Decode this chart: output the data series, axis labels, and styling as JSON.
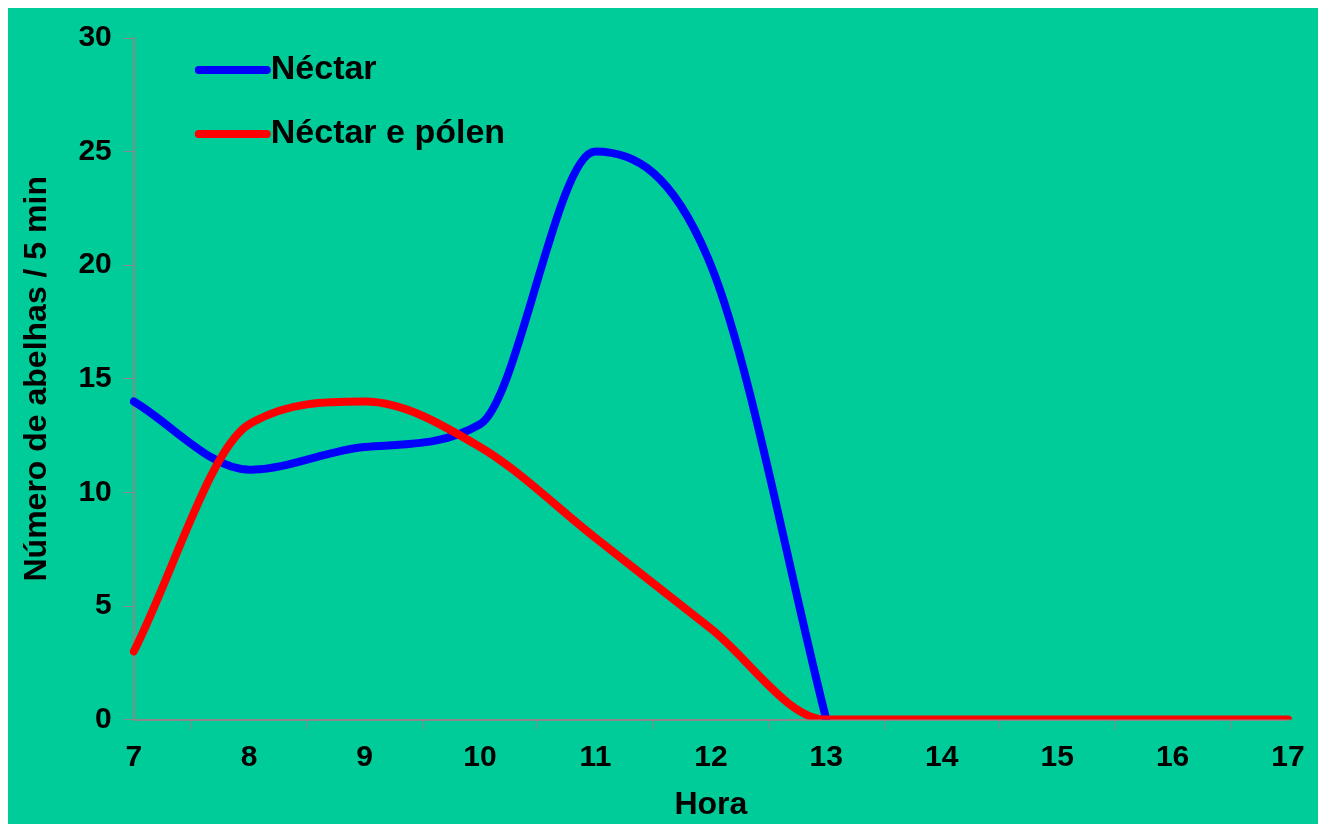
{
  "chart_data": {
    "type": "line",
    "xlabel": "Hora",
    "ylabel": "Número de abelhas / 5 min",
    "categories": [
      "7",
      "8",
      "9",
      "10",
      "11",
      "12",
      "13",
      "14",
      "15",
      "16",
      "17"
    ],
    "series": [
      {
        "name": "Néctar",
        "color": "#0000ff",
        "values": [
          14,
          11,
          12,
          13,
          25,
          20,
          0,
          null,
          null,
          null,
          null
        ]
      },
      {
        "name": "Néctar e pólen",
        "color": "#ff0000",
        "values": [
          3,
          13,
          14,
          12,
          8,
          4,
          0,
          0,
          0,
          0,
          0
        ]
      }
    ],
    "ylim": [
      0,
      30
    ],
    "yticks": [
      0,
      5,
      10,
      15,
      20,
      25,
      30
    ],
    "grid": false,
    "legend": "top left",
    "marker": "none",
    "line_style": "solid"
  }
}
